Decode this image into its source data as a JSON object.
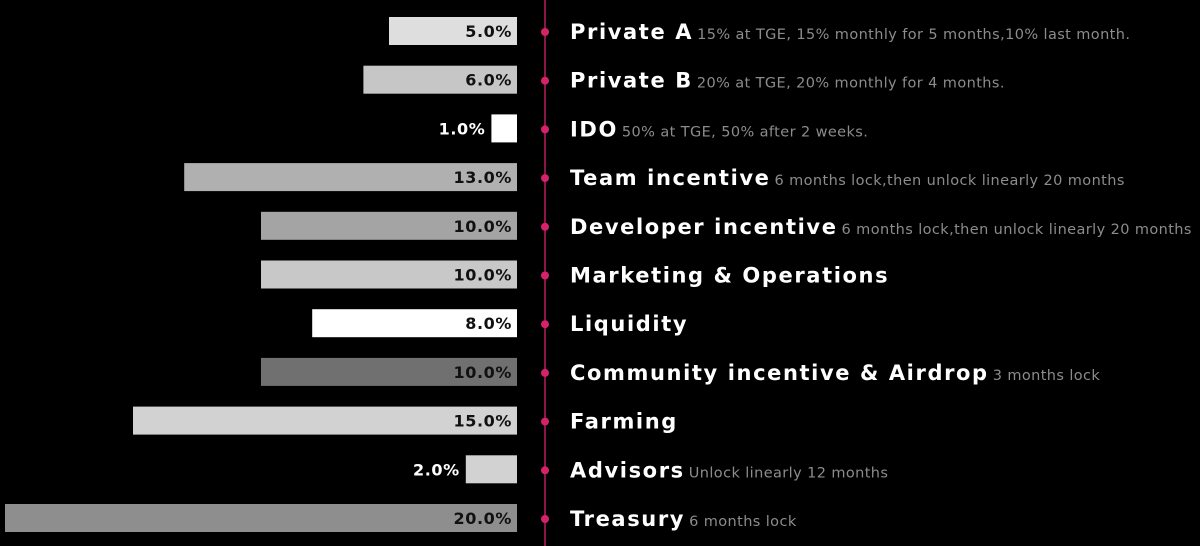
{
  "chart_data": {
    "type": "bar",
    "orientation": "horizontal",
    "xlim": [
      0,
      20
    ],
    "grid": false,
    "legend": "none",
    "unit": "%",
    "title": "",
    "xlabel": "",
    "ylabel": "",
    "colors": {
      "background": "#000000",
      "timeline": "#d6226b",
      "dot": "#d6226b",
      "category_text": "#ffffff",
      "note_text": "#8c8c8c",
      "dark_bar_text": "#111111",
      "light_value_text": "#ffffff"
    },
    "items": [
      {
        "category": "Private A",
        "value": 5.0,
        "value_label": "5.0%",
        "note": "15% at TGE, 15% monthly for 5 months,10% last month.",
        "bar_color": "#dedede"
      },
      {
        "category": "Private B",
        "value": 6.0,
        "value_label": "6.0%",
        "note": "20% at TGE, 20% monthly for 4 months.",
        "bar_color": "#c6c6c6"
      },
      {
        "category": "IDO",
        "value": 1.0,
        "value_label": "1.0%",
        "note": "50% at TGE, 50% after 2 weeks.",
        "bar_color": "#ffffff"
      },
      {
        "category": "Team incentive",
        "value": 13.0,
        "value_label": "13.0%",
        "note": "6 months lock,then unlock linearly 20 months",
        "bar_color": "#b0b0b0"
      },
      {
        "category": "Developer incentive",
        "value": 10.0,
        "value_label": "10.0%",
        "note": "6 months lock,then unlock linearly 20 months",
        "bar_color": "#a4a4a4"
      },
      {
        "category": "Marketing & Operations",
        "value": 10.0,
        "value_label": "10.0%",
        "note": "",
        "bar_color": "#c8c8c8"
      },
      {
        "category": "Liquidity",
        "value": 8.0,
        "value_label": "8.0%",
        "note": "",
        "bar_color": "#ffffff"
      },
      {
        "category": "Community incentive & Airdrop",
        "value": 10.0,
        "value_label": "10.0%",
        "note": "3 months lock",
        "bar_color": "#707070"
      },
      {
        "category": "Farming",
        "value": 15.0,
        "value_label": "15.0%",
        "note": "",
        "bar_color": "#d2d2d2"
      },
      {
        "category": "Advisors",
        "value": 2.0,
        "value_label": "2.0%",
        "note": "Unlock linearly 12 months",
        "bar_color": "#d2d2d2"
      },
      {
        "category": "Treasury",
        "value": 20.0,
        "value_label": "20.0%",
        "note": "6 months lock",
        "bar_color": "#8e8e8e"
      }
    ]
  }
}
